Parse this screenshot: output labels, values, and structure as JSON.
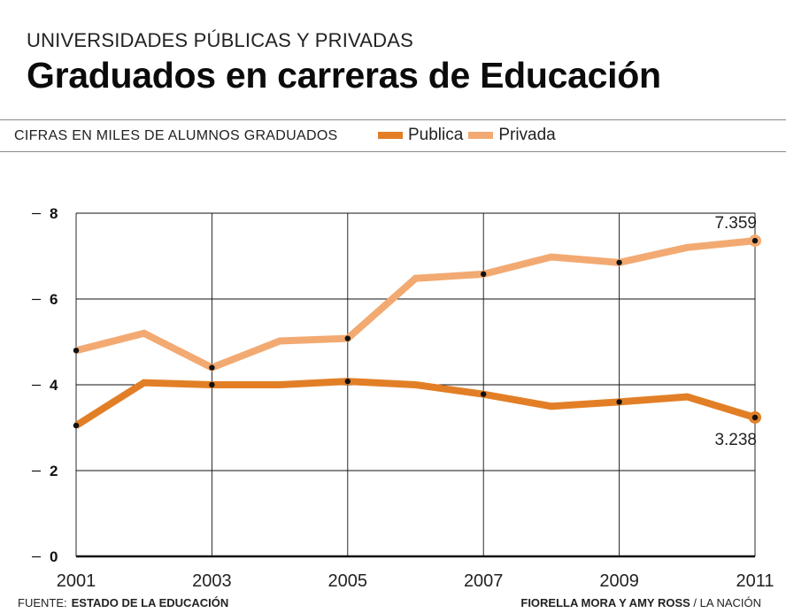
{
  "header": {
    "kicker": "UNIVERSIDADES PÚBLICAS Y PRIVADAS",
    "title": "Graduados en carreras de Educación",
    "subtitle": "CIFRAS EN MILES DE ALUMNOS GRADUADOS"
  },
  "colors": {
    "publica": "#e27f26",
    "privada": "#f2aa72",
    "grid": "#111111"
  },
  "chart_data": {
    "type": "line",
    "title": "Graduados en carreras de Educación",
    "ylabel": "CIFRAS EN MILES DE ALUMNOS GRADUADOS",
    "xlabel": "",
    "x": [
      2001,
      2002,
      2003,
      2004,
      2005,
      2006,
      2007,
      2008,
      2009,
      2010,
      2011
    ],
    "x_tick_labels": [
      "2001",
      "2003",
      "2005",
      "2007",
      "2009",
      "2011"
    ],
    "y_tick_labels": [
      "0",
      "2",
      "4",
      "6",
      "8"
    ],
    "ylim": [
      0,
      8
    ],
    "grid": true,
    "legend": "top",
    "series": [
      {
        "name": "Publica",
        "values": [
          3.05,
          4.05,
          4.0,
          4.0,
          4.08,
          4.0,
          3.78,
          3.5,
          3.6,
          3.72,
          3.238
        ],
        "end_label": "3.238"
      },
      {
        "name": "Privada",
        "values": [
          4.8,
          5.2,
          4.4,
          5.02,
          5.08,
          6.48,
          6.58,
          6.98,
          6.85,
          7.2,
          7.359
        ],
        "end_label": "7.359"
      }
    ]
  },
  "footer": {
    "source_label": "FUENTE:",
    "source_name": "ESTADO DE LA EDUCACIÓN",
    "credit_authors": "FIORELLA MORA Y AMY ROSS",
    "credit_outlet": "/ LA NACIÓN"
  }
}
